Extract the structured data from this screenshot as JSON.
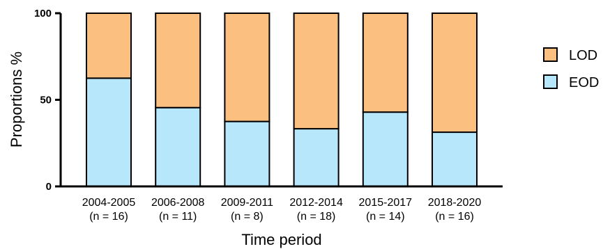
{
  "chart_data": {
    "type": "bar",
    "stacked": true,
    "categories": [
      "2004-2005",
      "2006-2008",
      "2009-2011",
      "2012-2014",
      "2015-2017",
      "2018-2020"
    ],
    "category_sublabels": [
      "(n = 16)",
      "(n = 11)",
      "(n = 8)",
      "(n = 18)",
      "(n = 14)",
      "(n = 16)"
    ],
    "series": [
      {
        "name": "EOD",
        "color": "#b7e7fb",
        "values": [
          62.5,
          45.5,
          37.5,
          33.3,
          42.9,
          31.3
        ]
      },
      {
        "name": "LOD",
        "color": "#fbbf80",
        "values": [
          37.5,
          54.5,
          62.5,
          66.7,
          57.1,
          68.7
        ]
      }
    ],
    "legend_order": [
      "LOD",
      "EOD"
    ],
    "legend_position": "right",
    "xlabel": "Time period",
    "ylabel": "Proportions %",
    "ylim": [
      0,
      100
    ],
    "yticks": [
      0,
      50,
      100
    ],
    "grid": false
  }
}
